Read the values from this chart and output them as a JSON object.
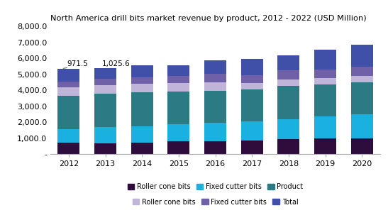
{
  "title": "North America drill bits market revenue by product, 2012 - 2022 (USD Million)",
  "years": [
    2012,
    2013,
    2014,
    2015,
    2016,
    2017,
    2018,
    2019,
    2020
  ],
  "roller_cone_product": [
    700,
    680,
    730,
    780,
    810,
    860,
    930,
    980,
    1000
  ],
  "fixed_cutter_product": [
    850,
    1000,
    1020,
    1100,
    1150,
    1200,
    1250,
    1380,
    1480
  ],
  "teal_product": [
    2100,
    2100,
    2100,
    2050,
    2000,
    2000,
    2100,
    2000,
    2000
  ],
  "roller_cone_total": [
    550,
    550,
    550,
    500,
    550,
    400,
    400,
    400,
    400
  ],
  "fixed_cutter_total": [
    350,
    400,
    400,
    450,
    500,
    500,
    550,
    550,
    580
  ],
  "indigo_total": [
    800,
    650,
    750,
    700,
    850,
    1000,
    950,
    1250,
    1380
  ],
  "annotations": {
    "idx0": "971.5",
    "idx1": "1,025.6"
  },
  "colors": {
    "roller_cone_product": "#2e0c3c",
    "fixed_cutter_product": "#1ab0e0",
    "teal_product": "#2b7a84",
    "roller_cone_total": "#c0b4d8",
    "fixed_cutter_total": "#7060a8",
    "indigo_total": "#404fa8"
  },
  "ylim": [
    0,
    8000
  ],
  "yticks": [
    0,
    1000,
    2000,
    3000,
    4000,
    5000,
    6000,
    7000,
    8000
  ],
  "ytick_labels": [
    "-",
    "1,000.0",
    "2,000.0",
    "3,000.0",
    "4,000.0",
    "5,000.0",
    "6,000.0",
    "7,000.0",
    "8,000.0"
  ],
  "background_color": "#ffffff",
  "figsize": [
    5.47,
    3.1
  ],
  "dpi": 100
}
